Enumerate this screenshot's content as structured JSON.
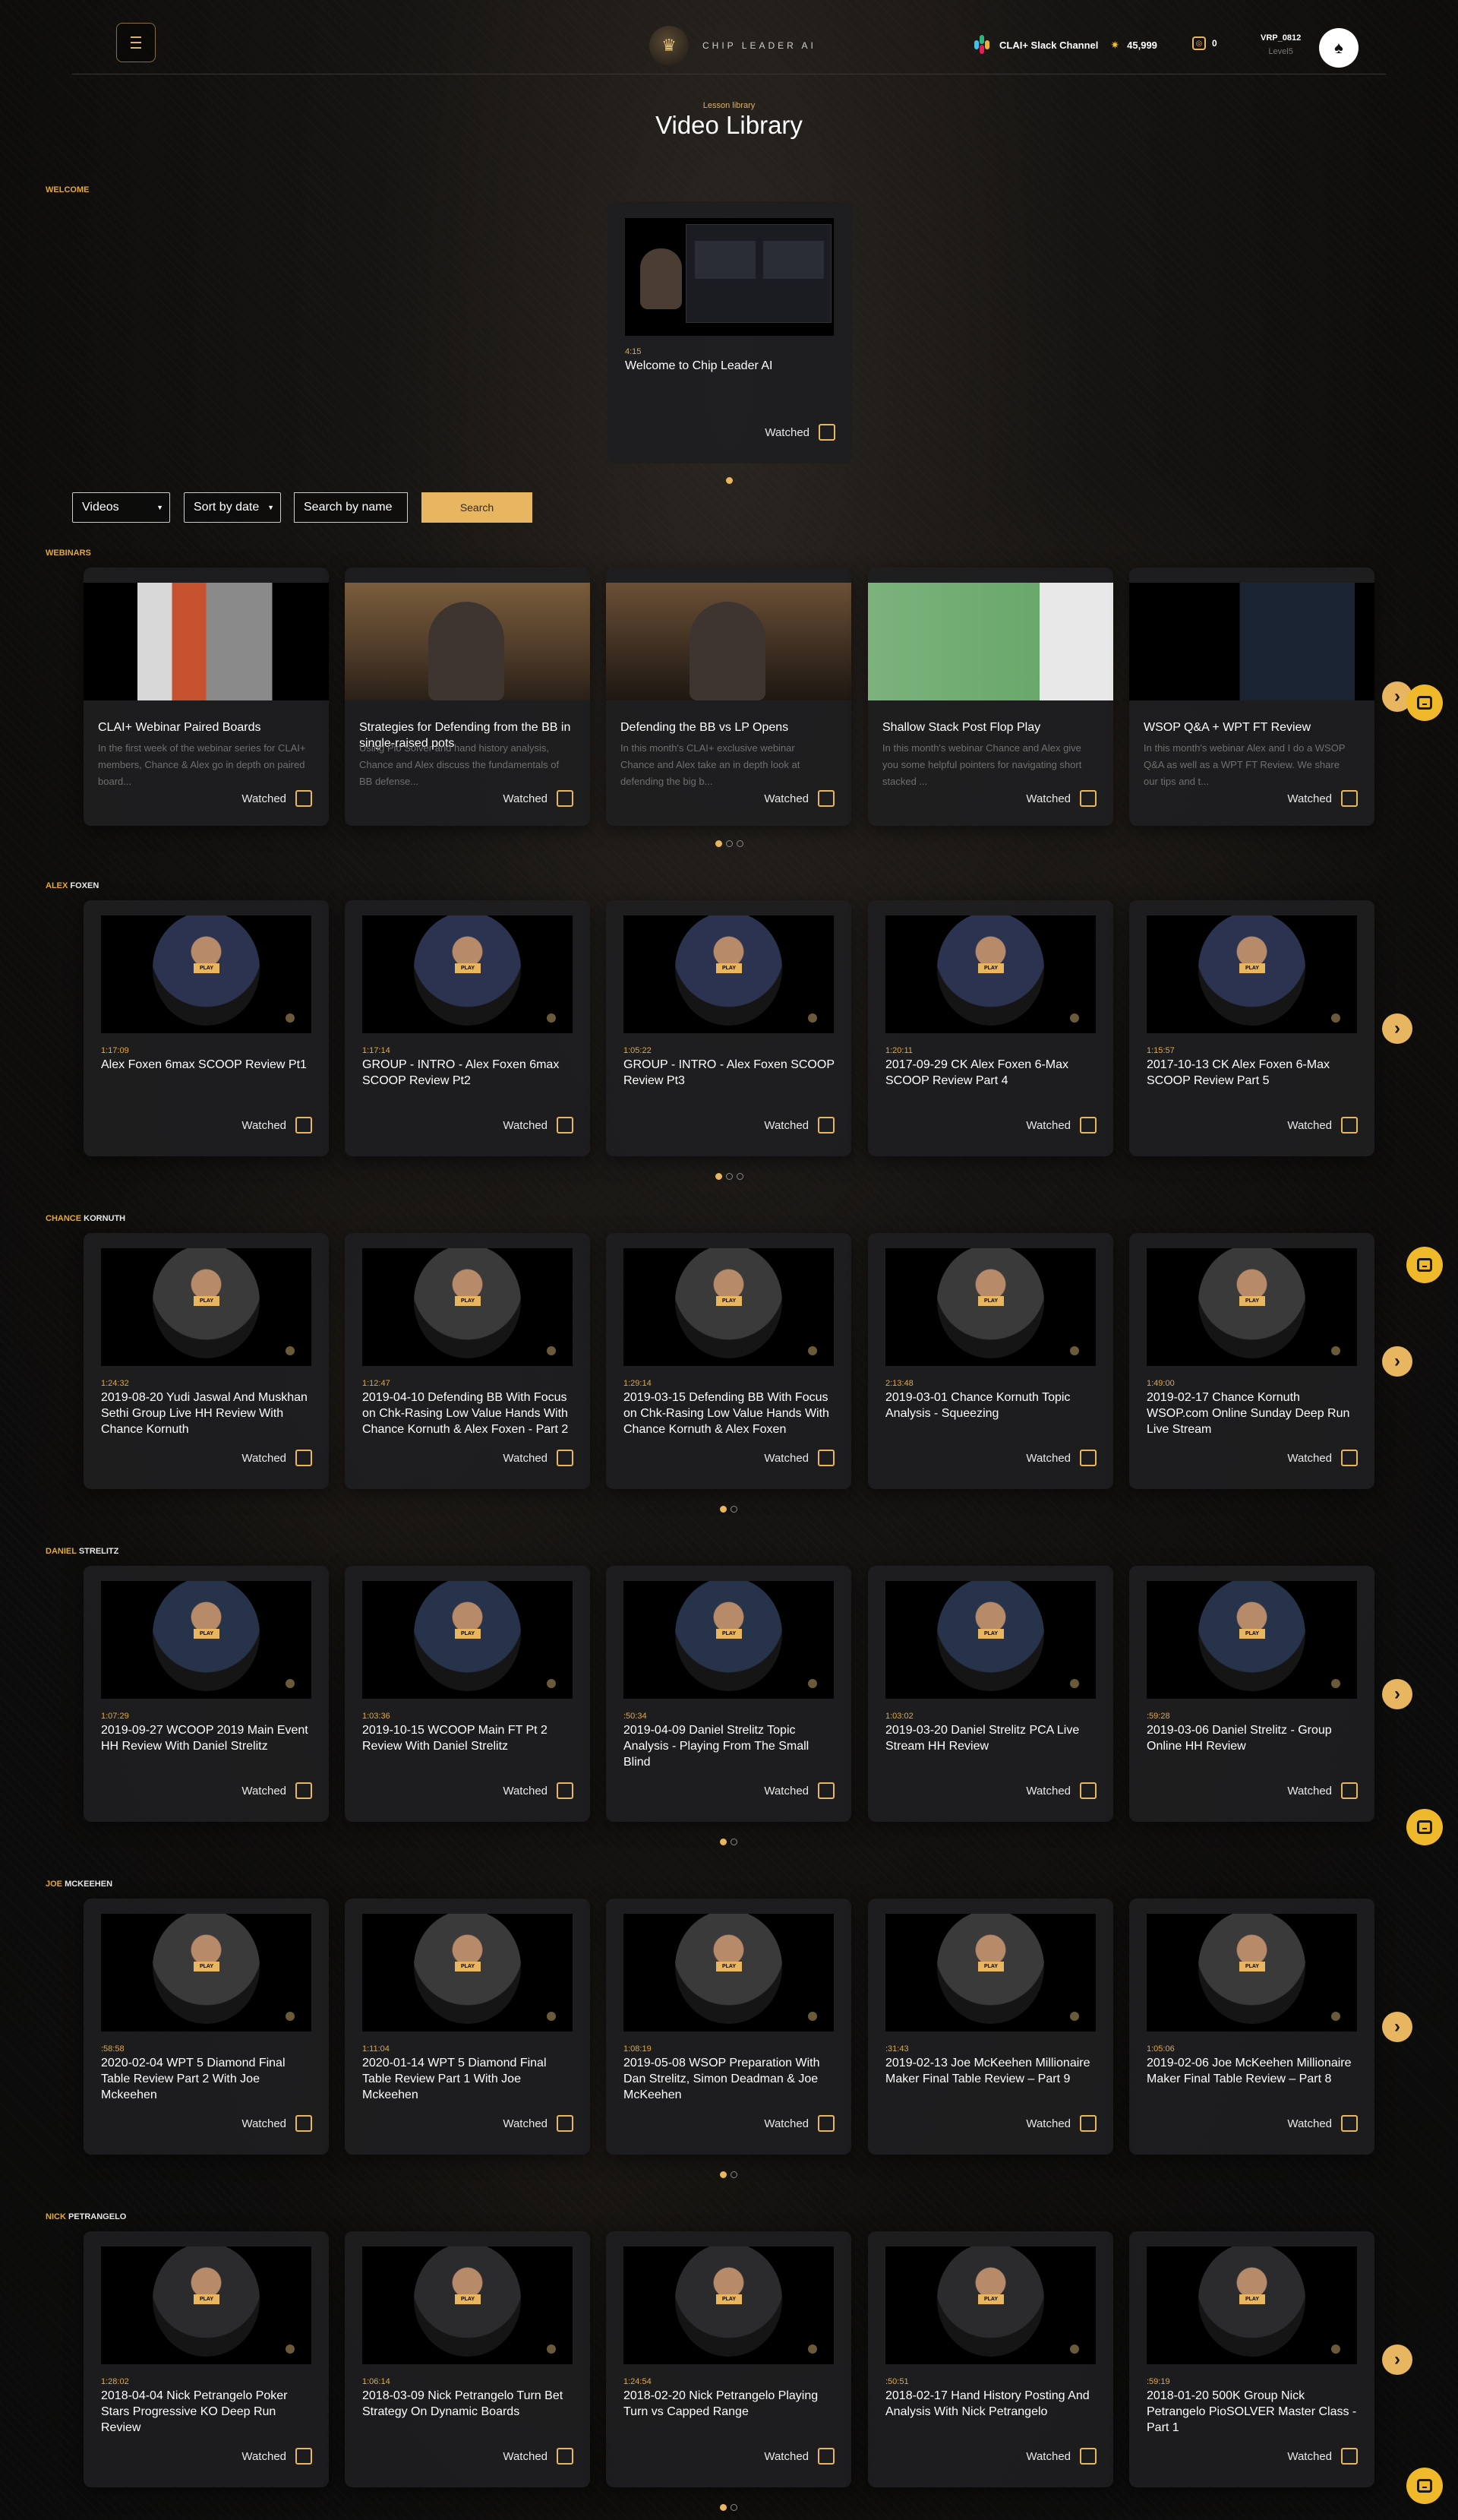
{
  "header": {
    "logo_text": "CHIP LEADER AI",
    "slack_label": "CLAI+ Slack Channel",
    "coins": "45,999",
    "chips": "0",
    "username": "VRP_0812",
    "level": "Level5"
  },
  "page": {
    "subtitle": "Lesson library",
    "title": "Video Library"
  },
  "welcome": {
    "label": "WELCOME",
    "duration": "4:15",
    "title": "Welcome to Chip Leader AI",
    "watched_label": "Watched"
  },
  "filters": {
    "type": "Videos",
    "sort": "Sort by date",
    "search_placeholder": "Search by name",
    "search_button": "Search"
  },
  "webinars": {
    "label": "WEBINARS",
    "cards": [
      {
        "title": "CLAI+ Webinar Paired Boards",
        "desc": "In the first week of the webinar series for CLAI+ members, Chance & Alex go in depth on paired board..."
      },
      {
        "title": "Strategies for Defending from the BB in single-raised pots",
        "desc": "Using Pio Solver and hand history analysis, Chance and Alex discuss the fundamentals of BB defense..."
      },
      {
        "title": "Defending the BB vs LP Opens",
        "desc": "In this month's CLAI+ exclusive webinar Chance and Alex take an in depth look at defending the big b..."
      },
      {
        "title": "Shallow Stack Post Flop Play",
        "desc": "In this month's webinar Chance and Alex give you some helpful pointers for navigating short stacked ..."
      },
      {
        "title": "WSOP Q&A + WPT FT Review",
        "desc": "In this month's webinar Alex and I do a WSOP Q&A as well as a WPT FT Review. We share our tips and t..."
      }
    ]
  },
  "sections": [
    {
      "accent": "ALEX",
      "rest": "FOXEN",
      "cards": [
        {
          "duration": "1:17:09",
          "title": "Alex Foxen 6max SCOOP Review Pt1"
        },
        {
          "duration": "1:17:14",
          "title": "GROUP - INTRO - Alex Foxen 6max SCOOP Review Pt2"
        },
        {
          "duration": "1:05:22",
          "title": "GROUP - INTRO - Alex Foxen SCOOP Review Pt3"
        },
        {
          "duration": "1:20:11",
          "title": "2017-09-29 CK Alex Foxen 6-Max SCOOP Review Part 4"
        },
        {
          "duration": "1:15:57",
          "title": "2017-10-13 CK Alex Foxen 6-Max SCOOP Review Part 5"
        }
      ]
    },
    {
      "accent": "CHANCE",
      "rest": "KORNUTH",
      "cards": [
        {
          "duration": "1:24:32",
          "title": "2019-08-20 Yudi Jaswal And Muskhan Sethi Group Live HH Review With Chance Kornuth"
        },
        {
          "duration": "1:12:47",
          "title": "2019-04-10 Defending BB With Focus on Chk-Rasing Low Value Hands With Chance Kornuth & Alex Foxen - Part 2"
        },
        {
          "duration": "1:29:14",
          "title": "2019-03-15 Defending BB With Focus on Chk-Rasing Low Value Hands With Chance Kornuth & Alex Foxen"
        },
        {
          "duration": "2:13:48",
          "title": "2019-03-01 Chance Kornuth Topic Analysis - Squeezing"
        },
        {
          "duration": "1:49:00",
          "title": "2019-02-17 Chance Kornuth WSOP.com Online Sunday Deep Run Live Stream"
        }
      ]
    },
    {
      "accent": "DANIEL",
      "rest": "STRELITZ",
      "cards": [
        {
          "duration": "1:07:29",
          "title": "2019-09-27 WCOOP 2019 Main Event HH Review With Daniel Strelitz"
        },
        {
          "duration": "1:03:36",
          "title": "2019-10-15 WCOOP Main FT Pt 2 Review With Daniel Strelitz"
        },
        {
          "duration": ":50:34",
          "title": "2019-04-09 Daniel Strelitz Topic Analysis - Playing From The Small Blind"
        },
        {
          "duration": "1:03:02",
          "title": "2019-03-20 Daniel Strelitz PCA Live Stream HH Review"
        },
        {
          "duration": ":59:28",
          "title": "2019-03-06 Daniel Strelitz - Group Online HH Review"
        }
      ]
    },
    {
      "accent": "JOE",
      "rest": "MCKEEHEN",
      "cards": [
        {
          "duration": ":58:58",
          "title": "2020-02-04 WPT 5 Diamond Final Table Review Part 2 With Joe Mckeehen"
        },
        {
          "duration": "1:11:04",
          "title": "2020-01-14 WPT 5 Diamond Final Table Review Part 1 With Joe Mckeehen"
        },
        {
          "duration": "1:08:19",
          "title": "2019-05-08 WSOP Preparation With Dan Strelitz, Simon Deadman & Joe McKeehen"
        },
        {
          "duration": ":31:43",
          "title": "2019-02-13 Joe McKeehen Millionaire Maker Final Table Review – Part 9"
        },
        {
          "duration": "1:05:06",
          "title": "2019-02-06 Joe McKeehen Millionaire Maker Final Table Review – Part 8"
        }
      ]
    },
    {
      "accent": "NICK",
      "rest": "PETRANGELO",
      "cards": [
        {
          "duration": "1:28:02",
          "title": "2018-04-04 Nick Petrangelo Poker Stars Progressive KO Deep Run Review"
        },
        {
          "duration": "1:06:14",
          "title": "2018-03-09 Nick Petrangelo Turn Bet Strategy On Dynamic Boards"
        },
        {
          "duration": "1:24:54",
          "title": "2018-02-20 Nick Petrangelo Playing Turn vs Capped Range"
        },
        {
          "duration": ":50:51",
          "title": "2018-02-17 Hand History Posting And Analysis With Nick Petrangelo"
        },
        {
          "duration": ":59:19",
          "title": "2018-01-20 500K Group Nick Petrangelo PioSOLVER Master Class - Part 1"
        }
      ]
    }
  ],
  "common": {
    "watched_label": "Watched",
    "play_label": "PLAY"
  }
}
